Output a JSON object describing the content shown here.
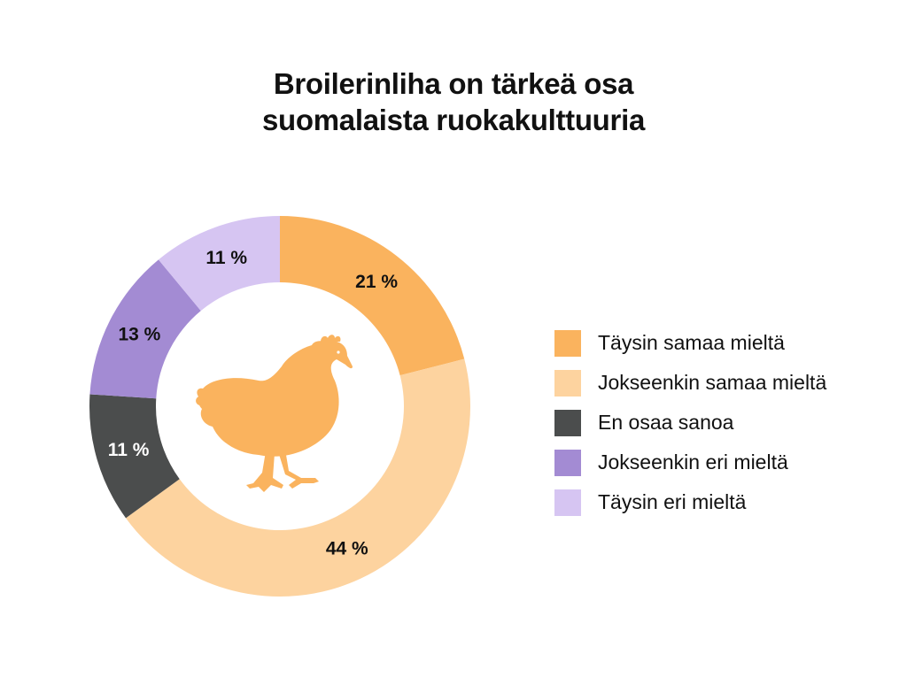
{
  "title": {
    "line1": "Broilerinliha on tärkeä osa",
    "line2": "suomalaista ruokakulttuuria"
  },
  "center_icon": "chicken-icon",
  "colors": {
    "chicken": "#FAB35E"
  },
  "chart_data": {
    "type": "donut",
    "title": "Broilerinliha on tärkeä osa suomalaista ruokakulttuuria",
    "legend_position": "right",
    "slices": [
      {
        "label": "Täysin samaa mieltä",
        "value": 21,
        "value_label": "21 %",
        "color": "#FAB35E",
        "text_color": "#111111"
      },
      {
        "label": "Jokseenkin samaa mieltä",
        "value": 44,
        "value_label": "44 %",
        "color": "#FDD39F",
        "text_color": "#111111"
      },
      {
        "label": "En osaa sanoa",
        "value": 11,
        "value_label": "11 %",
        "color": "#4B4D4D",
        "text_color": "#ffffff"
      },
      {
        "label": "Jokseenkin eri mieltä",
        "value": 13,
        "value_label": "13 %",
        "color": "#A38BD3",
        "text_color": "#111111"
      },
      {
        "label": "Täysin eri mieltä",
        "value": 11,
        "value_label": "11 %",
        "color": "#D6C5F2",
        "text_color": "#111111"
      }
    ]
  }
}
